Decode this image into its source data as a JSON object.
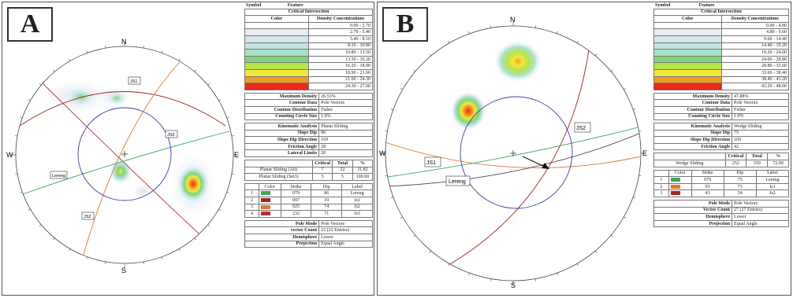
{
  "panels": [
    {
      "letter": "A",
      "directions": {
        "n": "N",
        "e": "E",
        "s": "S",
        "w": "W"
      },
      "plane_labels": [
        "JS1",
        "JS3",
        "Lereng",
        "JS2"
      ],
      "table": {
        "header": {
          "symbol": "Symbol",
          "feature": "Feature"
        },
        "critical_title": "Critical Intersection",
        "legend_header": {
          "color": "Color",
          "density": "Density Concentrations"
        },
        "density_rows": [
          {
            "color": "#ffffff",
            "range": "0.00 - 2.70"
          },
          {
            "color": "#e8edf5",
            "range": "2.70 - 5.40"
          },
          {
            "color": "#d6e6ef",
            "range": "5.40 - 8.10"
          },
          {
            "color": "#c4e4e2",
            "range": "8.10 - 10.80"
          },
          {
            "color": "#a9e1c6",
            "range": "10.80 - 13.50"
          },
          {
            "color": "#7ed67a",
            "range": "13.50 - 16.20"
          },
          {
            "color": "#b8e34a",
            "range": "16.20 - 18.90"
          },
          {
            "color": "#f3e83a",
            "range": "18.90 - 21.60"
          },
          {
            "color": "#f49b22",
            "range": "21.60 - 24.30"
          },
          {
            "color": "#ea2a1a",
            "range": "24.30 - 27.00"
          }
        ],
        "stats": [
          {
            "label": "Maximum Density",
            "value": "26.53%"
          },
          {
            "label": "Contour Data",
            "value": "Pole Vectors"
          },
          {
            "label": "Contour Distribution",
            "value": "Fisher"
          },
          {
            "label": "Counting Circle Size",
            "value": "1.0%"
          }
        ],
        "kinematic": [
          {
            "label": "Kinematic Analysis",
            "value": "Planar Sliding"
          },
          {
            "label": "Slope Dip",
            "value": "86"
          },
          {
            "label": "Slope Dip Direction",
            "value": "169"
          },
          {
            "label": "Friction Angle",
            "value": "28"
          },
          {
            "label": "Lateral Limits",
            "value": "20"
          }
        ],
        "critical_header": {
          "critical": "Critical",
          "total": "Total",
          "pct": "%"
        },
        "critical_rows": [
          {
            "name": "Planar Sliding (All)",
            "critical": "7",
            "total": "22",
            "pct": "31.82"
          },
          {
            "name": "Planar Sliding (Set3)",
            "critical": "5",
            "total": "5",
            "pct": "100.00"
          }
        ],
        "set_header": {
          "color": "Color",
          "strike": "Strike",
          "dip": "Dip",
          "label": "Label"
        },
        "sets": [
          {
            "id": "1",
            "color": "#3aaa5c",
            "strike": "079",
            "dip": "86",
            "label": "Lereng"
          },
          {
            "id": "2",
            "color": "#a0281e",
            "strike": "097",
            "dip": "19",
            "label": "Js1"
          },
          {
            "id": "3",
            "color": "#e8742a",
            "strike": "025",
            "dip": "74",
            "label": "Js2"
          },
          {
            "id": "4",
            "color": "#b8303a",
            "strike": "232",
            "dip": "71",
            "label": "Js3"
          }
        ],
        "footer": [
          {
            "label": "Pole Mode",
            "value": "Pole Vectors"
          },
          {
            "label": "vector Count",
            "value": "22 (22 Entries)"
          },
          {
            "label": "Hemisphere",
            "value": "Lower"
          },
          {
            "label": "Projection",
            "value": "Equal Angle"
          }
        ]
      }
    },
    {
      "letter": "B",
      "directions": {
        "n": "N",
        "e": "E",
        "s": "S",
        "w": "W"
      },
      "plane_labels": [
        "JS2",
        "JS1",
        "Lereng"
      ],
      "table": {
        "header": {
          "symbol": "Symbol",
          "feature": "Feature"
        },
        "critical_title": "Critical Intersection",
        "legend_header": {
          "color": "Color",
          "density": "Density Concentrations"
        },
        "density_rows": [
          {
            "color": "#ffffff",
            "range": "0.00 - 4.80"
          },
          {
            "color": "#e8edf5",
            "range": "4.80 - 9.60"
          },
          {
            "color": "#d6e6ef",
            "range": "9.60 - 14.40"
          },
          {
            "color": "#c4e4e2",
            "range": "14.40 - 19.20"
          },
          {
            "color": "#a9e1c6",
            "range": "19.20 - 24.00"
          },
          {
            "color": "#7ed67a",
            "range": "24.00 - 28.80"
          },
          {
            "color": "#b8e34a",
            "range": "28.80 - 33.60"
          },
          {
            "color": "#f3e83a",
            "range": "33.60 - 38.40"
          },
          {
            "color": "#f49b22",
            "range": "38.40 - 43.20"
          },
          {
            "color": "#ea2a1a",
            "range": "43.20 - 48.00"
          }
        ],
        "stats": [
          {
            "label": "Maximum Density",
            "value": "47.88%"
          },
          {
            "label": "Contour Data",
            "value": "Pole Vectors"
          },
          {
            "label": "Contour Distribution",
            "value": "Fisher"
          },
          {
            "label": "Counting Circle Size",
            "value": "1.0%"
          }
        ],
        "kinematic": [
          {
            "label": "Kinematic Analysis",
            "value": "Wedge Sliding"
          },
          {
            "label": "Slope Dip",
            "value": "75"
          },
          {
            "label": "Slope Dip Direction",
            "value": "169"
          },
          {
            "label": "Friction Angle",
            "value": "42"
          }
        ],
        "critical_header": {
          "critical": "Critical",
          "total": "Total",
          "pct": "%"
        },
        "critical_rows": [
          {
            "name": "Wedge Sliding",
            "critical": "252",
            "total": "350",
            "pct": "72.00"
          }
        ],
        "set_header": {
          "color": "Color",
          "strike": "Strike",
          "dip": "Dip",
          "label": "Label"
        },
        "sets": [
          {
            "id": "1",
            "color": "#3aaa5c",
            "strike": "079",
            "dip": "75",
            "label": "Lereng"
          },
          {
            "id": "2",
            "color": "#e8742a",
            "strike": "93",
            "dip": "73",
            "label": "Js1"
          },
          {
            "id": "3",
            "color": "#a0281e",
            "strike": "43",
            "dip": "54",
            "label": "Js2"
          }
        ],
        "footer": [
          {
            "label": "Pole Mode",
            "value": "Pole Vectors"
          },
          {
            "label": "Vector Count",
            "value": "27 (27 Entries)"
          },
          {
            "label": "Hemisphere",
            "value": "Lower"
          },
          {
            "label": "Projection",
            "value": "Equal Angle"
          }
        ]
      }
    }
  ]
}
